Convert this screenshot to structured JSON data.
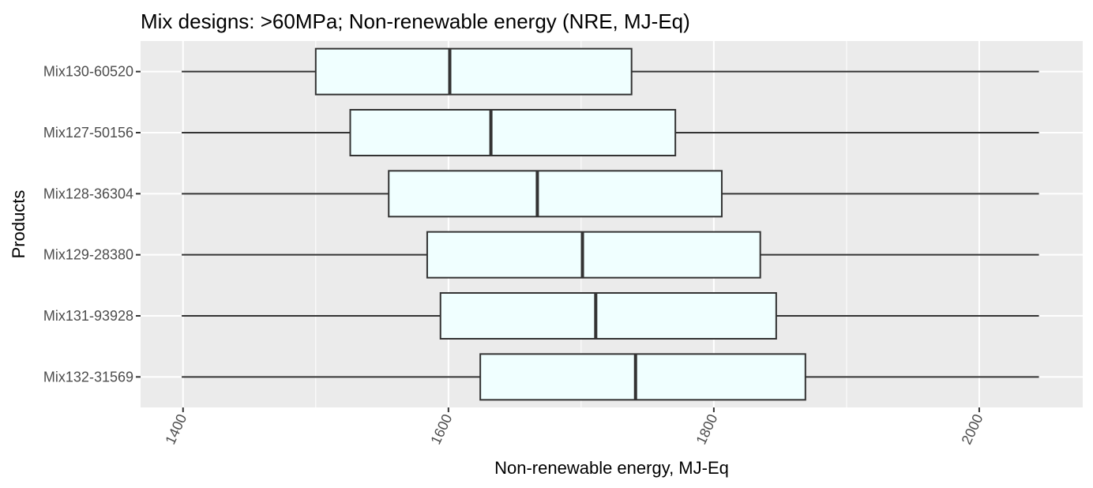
{
  "chart_data": {
    "type": "boxplot",
    "orientation": "horizontal",
    "title": "Mix designs: >60MPa; Non-renewable energy (NRE, MJ-Eq)",
    "xlabel": "Non-renewable energy, MJ-Eq",
    "ylabel": "Products",
    "xlim": [
      1368,
      2078
    ],
    "xticks": [
      1400,
      1600,
      1800,
      2000
    ],
    "x_tick_labels": [
      "1400",
      "1600",
      "1800",
      "2000"
    ],
    "x_minor_ticks": [
      1500,
      1700,
      1900
    ],
    "x_tick_label_rotation": -65,
    "grid": true,
    "box_fill": "#F0FFFF",
    "box_stroke": "#333333",
    "panel_background": "#EBEBEB",
    "categories": [
      "Mix130-60520",
      "Mix127-50156",
      "Mix128-36304",
      "Mix129-28380",
      "Mix131-93928",
      "Mix132-31569"
    ],
    "boxes": [
      {
        "name": "Mix130-60520",
        "whisker_low": 1399,
        "q1": 1500,
        "median": 1601,
        "q3": 1738,
        "whisker_high": 2045
      },
      {
        "name": "Mix127-50156",
        "whisker_low": 1399,
        "q1": 1526,
        "median": 1632,
        "q3": 1771,
        "whisker_high": 2045
      },
      {
        "name": "Mix128-36304",
        "whisker_low": 1399,
        "q1": 1555,
        "median": 1667,
        "q3": 1806,
        "whisker_high": 2045
      },
      {
        "name": "Mix129-28380",
        "whisker_low": 1399,
        "q1": 1584,
        "median": 1701,
        "q3": 1835,
        "whisker_high": 2045
      },
      {
        "name": "Mix131-93928",
        "whisker_low": 1399,
        "q1": 1594,
        "median": 1711,
        "q3": 1847,
        "whisker_high": 2045
      },
      {
        "name": "Mix132-31569",
        "whisker_low": 1399,
        "q1": 1624,
        "median": 1741,
        "q3": 1869,
        "whisker_high": 2045
      }
    ]
  }
}
